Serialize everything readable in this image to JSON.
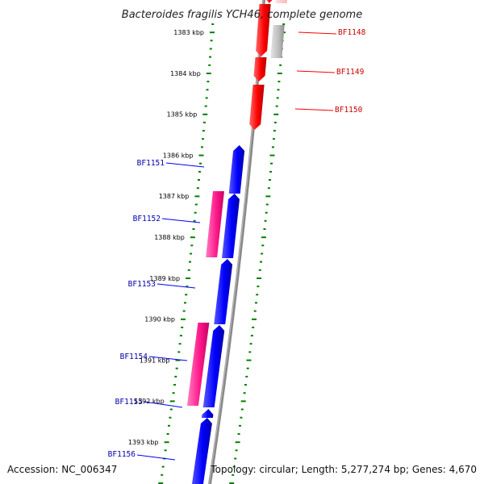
{
  "title": "Bacteroides fragilis YCH46, complete genome",
  "accession": "Accession: NC_006347",
  "topology": "Topology: circular; Length: 5,277,274 bp; Genes: 4,670",
  "colors": {
    "reverse_gene": "#ff0000",
    "forward_gene": "#0000ff",
    "forward_alt_gene": "#ff1a8c",
    "grey_gene": "#bbbbbb",
    "backbone": "#888888",
    "tick": "#008000"
  },
  "scale": [
    {
      "kbp": 1383,
      "label": "1383 kbp"
    },
    {
      "kbp": 1384,
      "label": "1384 kbp"
    },
    {
      "kbp": 1385,
      "label": "1385 kbp"
    },
    {
      "kbp": 1386,
      "label": "1386 kbp"
    },
    {
      "kbp": 1387,
      "label": "1387 kbp"
    },
    {
      "kbp": 1388,
      "label": "1388 kbp"
    },
    {
      "kbp": 1389,
      "label": "1389 kbp"
    },
    {
      "kbp": 1390,
      "label": "1390 kbp"
    },
    {
      "kbp": 1391,
      "label": "1391 kbp"
    },
    {
      "kbp": 1392,
      "label": "1392 kbp"
    },
    {
      "kbp": 1393,
      "label": "1393 kbp"
    }
  ],
  "genes": [
    {
      "name": "BF1148",
      "strand": "reverse",
      "color": "#ff0000"
    },
    {
      "name": "BF1149",
      "strand": "reverse",
      "color": "#ff0000"
    },
    {
      "name": "BF1150",
      "strand": "reverse",
      "color": "#ff0000"
    },
    {
      "name": "BF1151",
      "strand": "forward",
      "color": "#0000ff"
    },
    {
      "name": "BF1152",
      "strand": "forward",
      "color": "#0000ff"
    },
    {
      "name": "BF1153",
      "strand": "forward",
      "color": "#0000ff"
    },
    {
      "name": "BF1154",
      "strand": "forward",
      "color": "#0000ff"
    },
    {
      "name": "BF1155",
      "strand": "forward",
      "color": "#0000ff"
    },
    {
      "name": "BF1156",
      "strand": "forward",
      "color": "#0000ff"
    }
  ]
}
